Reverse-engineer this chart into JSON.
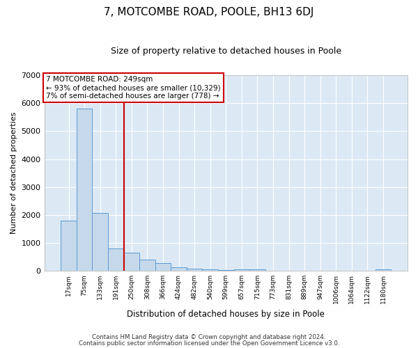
{
  "title": "7, MOTCOMBE ROAD, POOLE, BH13 6DJ",
  "subtitle": "Size of property relative to detached houses in Poole",
  "xlabel": "Distribution of detached houses by size in Poole",
  "ylabel": "Number of detached properties",
  "bar_color": "#c5d9ea",
  "bar_edge_color": "#5b9bd5",
  "bg_color": "#dce9f5",
  "grid_color": "#ffffff",
  "vline_color": "#cc0000",
  "vline_x": 3.5,
  "annotation_text": "7 MOTCOMBE ROAD: 249sqm\n← 93% of detached houses are smaller (10,329)\n7% of semi-detached houses are larger (778) →",
  "annotation_box_color": "#ffffff",
  "annotation_box_edge": "#cc0000",
  "categories": [
    "17sqm",
    "75sqm",
    "133sqm",
    "191sqm",
    "250sqm",
    "308sqm",
    "366sqm",
    "424sqm",
    "482sqm",
    "540sqm",
    "599sqm",
    "657sqm",
    "715sqm",
    "773sqm",
    "831sqm",
    "889sqm",
    "947sqm",
    "1006sqm",
    "1064sqm",
    "1122sqm",
    "1180sqm"
  ],
  "values": [
    1800,
    5800,
    2075,
    800,
    650,
    400,
    270,
    130,
    75,
    50,
    40,
    50,
    50,
    0,
    0,
    0,
    0,
    0,
    0,
    0,
    50
  ],
  "ylim": [
    0,
    7000
  ],
  "yticks": [
    0,
    1000,
    2000,
    3000,
    4000,
    5000,
    6000,
    7000
  ],
  "footer_line1": "Contains HM Land Registry data © Crown copyright and database right 2024.",
  "footer_line2": "Contains public sector information licensed under the Open Government Licence v3.0."
}
